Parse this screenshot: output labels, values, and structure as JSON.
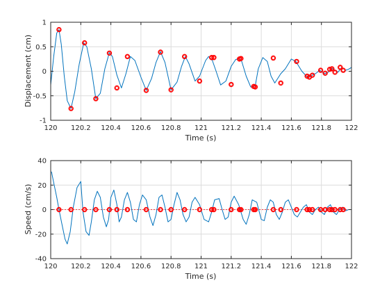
{
  "colors": {
    "trace": "#0072bd",
    "marker": "#ff0000",
    "grid": "#dcdcdc",
    "axis": "#262626"
  },
  "chart_data": [
    {
      "type": "line",
      "xlabel": "Time (s)",
      "ylabel": "Displacement (cm)",
      "xlim": [
        120,
        122
      ],
      "ylim": [
        -1,
        1
      ],
      "xticks": [
        120,
        120.2,
        120.4,
        120.6,
        120.8,
        121,
        121.2,
        121.4,
        121.6,
        121.8,
        122
      ],
      "yticks": [
        -1,
        -0.5,
        0,
        0.5,
        1
      ],
      "xtick_labels": [
        "120",
        "120.2",
        "120.4",
        "120.6",
        "120.8",
        "121",
        "121.2",
        "121.4",
        "121.6",
        "121.8",
        "122"
      ],
      "ytick_labels": [
        "-1",
        "-0.5",
        "0",
        "0.5",
        "1"
      ],
      "grid": true,
      "series": [
        {
          "x": [
            120.0,
            120.02,
            120.04,
            120.055,
            120.07,
            120.09,
            120.11,
            120.135,
            120.16,
            120.19,
            120.22,
            120.24,
            120.27,
            120.3,
            120.33,
            120.36,
            120.39,
            120.41,
            120.44,
            120.47,
            120.5,
            120.53,
            120.56,
            120.6,
            120.635,
            120.67,
            120.7,
            120.73,
            120.76,
            120.8,
            120.84,
            120.87,
            120.895,
            120.92,
            120.96,
            120.99,
            121.03,
            121.05,
            121.075,
            121.1,
            121.13,
            121.165,
            121.2,
            121.23,
            121.255,
            121.27,
            121.3,
            121.33,
            121.36,
            121.38,
            121.41,
            121.44,
            121.465,
            121.49,
            121.53,
            121.56,
            121.6,
            121.63,
            121.67,
            121.7,
            121.72,
            121.74,
            121.76,
            121.79,
            121.82,
            121.845,
            121.87,
            121.89,
            121.91,
            121.935,
            121.96,
            121.98,
            122.0
          ],
          "y": [
            -0.28,
            0.3,
            0.78,
            0.85,
            0.55,
            -0.1,
            -0.6,
            -0.76,
            -0.42,
            0.15,
            0.58,
            0.5,
            0.05,
            -0.56,
            -0.45,
            0.05,
            0.38,
            0.3,
            -0.08,
            -0.34,
            -0.05,
            0.3,
            0.22,
            -0.12,
            -0.39,
            -0.15,
            0.18,
            0.4,
            0.18,
            -0.38,
            -0.22,
            0.1,
            0.3,
            0.15,
            -0.2,
            -0.1,
            0.22,
            0.3,
            0.22,
            0.0,
            -0.28,
            -0.2,
            0.1,
            0.24,
            0.26,
            0.2,
            -0.1,
            -0.32,
            -0.3,
            0.05,
            0.28,
            0.2,
            -0.1,
            -0.24,
            -0.05,
            0.05,
            0.25,
            0.2,
            0.0,
            -0.1,
            -0.12,
            -0.08,
            -0.05,
            0.02,
            -0.05,
            -0.02,
            0.06,
            0.02,
            -0.02,
            0.08,
            0.02,
            0.04,
            0.08
          ]
        }
      ],
      "markers": {
        "x": [
          120.055,
          120.135,
          120.225,
          120.3,
          120.39,
          120.44,
          120.51,
          120.635,
          120.73,
          120.8,
          120.89,
          120.99,
          121.07,
          121.085,
          121.2,
          121.255,
          121.265,
          121.35,
          121.36,
          121.48,
          121.53,
          121.635,
          121.705,
          121.72,
          121.74,
          121.795,
          121.825,
          121.855,
          121.87,
          121.89,
          121.925,
          121.945
        ],
        "y": [
          0.85,
          -0.76,
          0.58,
          -0.56,
          0.37,
          -0.34,
          0.3,
          -0.39,
          0.39,
          -0.38,
          0.3,
          -0.2,
          0.28,
          0.28,
          -0.27,
          0.25,
          0.26,
          -0.31,
          -0.32,
          0.27,
          -0.24,
          0.2,
          -0.1,
          -0.12,
          -0.08,
          0.02,
          -0.04,
          0.04,
          0.05,
          -0.02,
          0.08,
          0.02
        ]
      }
    },
    {
      "type": "line",
      "xlabel": "Time (s)",
      "ylabel": "Speed (cm/s)",
      "xlim": [
        120,
        122
      ],
      "ylim": [
        -40,
        40
      ],
      "xticks": [
        120,
        120.2,
        120.4,
        120.6,
        120.8,
        121,
        121.2,
        121.4,
        121.6,
        121.8,
        122
      ],
      "yticks": [
        -40,
        -20,
        0,
        20,
        40
      ],
      "xtick_labels": [
        "120",
        "120.2",
        "120.4",
        "120.6",
        "120.8",
        "121",
        "121.2",
        "121.4",
        "121.6",
        "121.8",
        "122"
      ],
      "ytick_labels": [
        "-40",
        "-20",
        "0",
        "20",
        "40"
      ],
      "grid": true,
      "series": [
        {
          "x": [
            120.005,
            120.02,
            120.04,
            120.055,
            120.075,
            120.095,
            120.11,
            120.13,
            120.15,
            120.175,
            120.2,
            120.215,
            120.235,
            120.255,
            120.27,
            120.29,
            120.31,
            120.33,
            120.35,
            120.37,
            120.385,
            120.4,
            120.42,
            120.44,
            120.455,
            120.47,
            120.49,
            120.51,
            120.53,
            120.55,
            120.57,
            120.59,
            120.61,
            120.635,
            120.66,
            120.68,
            120.7,
            120.72,
            120.74,
            120.76,
            120.78,
            120.8,
            120.82,
            120.84,
            120.86,
            120.88,
            120.9,
            120.92,
            120.94,
            120.96,
            120.99,
            121.02,
            121.05,
            121.07,
            121.09,
            121.12,
            121.14,
            121.16,
            121.18,
            121.2,
            121.22,
            121.25,
            121.28,
            121.3,
            121.32,
            121.34,
            121.37,
            121.4,
            121.42,
            121.44,
            121.46,
            121.48,
            121.5,
            121.52,
            121.54,
            121.56,
            121.58,
            121.6,
            121.62,
            121.64,
            121.66,
            121.68,
            121.7,
            121.72,
            121.74,
            121.76,
            121.78,
            121.8,
            121.82,
            121.84,
            121.86,
            121.88,
            121.9,
            121.92,
            121.94,
            121.96,
            121.98
          ],
          "y": [
            31,
            22,
            10,
            0,
            -12,
            -24,
            -28,
            -18,
            2,
            18,
            23,
            -2,
            -18,
            -21,
            -10,
            8,
            15,
            10,
            -6,
            -14,
            -8,
            10,
            16,
            4,
            -10,
            -6,
            8,
            14,
            6,
            -8,
            -10,
            4,
            12,
            8,
            -6,
            -13,
            -4,
            10,
            12,
            2,
            -10,
            -8,
            4,
            14,
            8,
            -4,
            -10,
            -6,
            6,
            10,
            4,
            -8,
            -10,
            -2,
            8,
            9,
            0,
            -8,
            -6,
            6,
            11,
            4,
            -8,
            -12,
            -4,
            8,
            6,
            -8,
            -9,
            2,
            8,
            6,
            -4,
            -8,
            -2,
            6,
            8,
            2,
            -4,
            -6,
            -2,
            2,
            4,
            -2,
            -4,
            0,
            2,
            -2,
            -4,
            2,
            4,
            -2,
            -4,
            0,
            2,
            -1,
            0
          ]
        }
      ],
      "markers": {
        "x": [
          120.055,
          120.135,
          120.225,
          120.3,
          120.39,
          120.44,
          120.51,
          120.635,
          120.73,
          120.8,
          120.89,
          120.99,
          121.07,
          121.085,
          121.2,
          121.255,
          121.265,
          121.35,
          121.36,
          121.48,
          121.53,
          121.635,
          121.705,
          121.72,
          121.74,
          121.795,
          121.825,
          121.855,
          121.87,
          121.89,
          121.925,
          121.945
        ],
        "y": [
          0,
          0,
          0,
          0,
          0,
          0,
          0,
          0,
          0,
          0,
          0,
          0,
          0,
          0,
          0,
          0,
          0,
          0,
          0,
          0,
          0,
          0,
          0,
          0,
          0,
          0,
          0,
          0,
          0,
          0,
          0,
          0
        ]
      }
    }
  ]
}
